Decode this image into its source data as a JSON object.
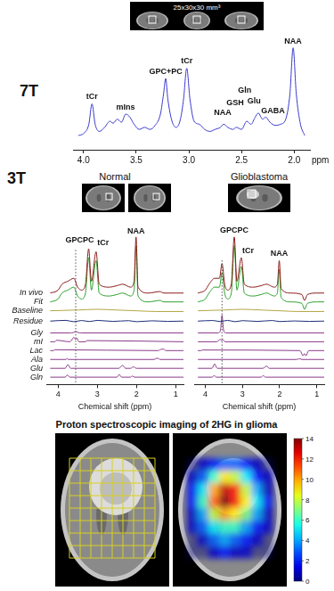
{
  "chart_data": [
    {
      "type": "line",
      "x_label": "ppm",
      "xlim": [
        4.1,
        1.85
      ],
      "xticks": [
        {
          "value": 4,
          "label": "4.0"
        },
        {
          "value": 3.5,
          "label": "3.5"
        },
        {
          "value": 3,
          "label": "3.0"
        },
        {
          "value": 2.5,
          "label": "2.5"
        },
        {
          "value": 2,
          "label": "2.0"
        }
      ],
      "ylim": [
        0,
        112
      ],
      "grid": false,
      "tick_labels": "x",
      "series": [
        {
          "color": "#3a3acc",
          "x": [
            4.05,
            4.0,
            3.95,
            3.92,
            3.89,
            3.85,
            3.8,
            3.75,
            3.72,
            3.68,
            3.64,
            3.6,
            3.56,
            3.52,
            3.47,
            3.42,
            3.37,
            3.32,
            3.27,
            3.24,
            3.22,
            3.2,
            3.16,
            3.12,
            3.08,
            3.05,
            3.02,
            2.99,
            2.95,
            2.9,
            2.85,
            2.8,
            2.75,
            2.7,
            2.67,
            2.63,
            2.58,
            2.55,
            2.5,
            2.45,
            2.41,
            2.37,
            2.34,
            2.3,
            2.27,
            2.23,
            2.18,
            2.13,
            2.08,
            2.04,
            2.01,
            1.98,
            1.94,
            1.9
          ],
          "values": [
            14,
            16,
            25,
            45,
            25,
            18,
            22,
            28,
            26,
            30,
            27,
            35,
            32,
            25,
            20,
            22,
            20,
            24,
            35,
            55,
            70,
            50,
            28,
            22,
            30,
            50,
            80,
            50,
            28,
            25,
            20,
            18,
            20,
            22,
            25,
            22,
            20,
            22,
            20,
            28,
            25,
            32,
            36,
            30,
            32,
            27,
            24,
            25,
            30,
            55,
            100,
            55,
            25,
            14
          ]
        }
      ],
      "annotations": [
        {
          "text": "tCr",
          "x": 3.92,
          "y": 48
        },
        {
          "text": "mIns",
          "x": 3.6,
          "y": 38
        },
        {
          "text": "GPC+PC",
          "x": 3.22,
          "y": 73
        },
        {
          "text": "tCr",
          "x": 3.02,
          "y": 83
        },
        {
          "text": "NAA",
          "x": 2.68,
          "y": 32
        },
        {
          "text": "GSH",
          "x": 2.56,
          "y": 42
        },
        {
          "text": "Gln",
          "x": 2.47,
          "y": 54
        },
        {
          "text": "Glu",
          "x": 2.38,
          "y": 44
        },
        {
          "text": "GABA",
          "x": 2.2,
          "y": 34
        },
        {
          "text": "NAA",
          "x": 2.01,
          "y": 102
        }
      ]
    },
    {
      "type": "line",
      "title": "Normal",
      "x_label": "Chemical shift (ppm)",
      "xlim": [
        4.3,
        0.8
      ],
      "xticks": [
        4,
        3,
        2,
        1
      ],
      "ylim": [
        0,
        112
      ],
      "grid": false,
      "tick_labels": "x",
      "reference_x": 3.55,
      "series": [
        {
          "name": "In vivo",
          "color": "#8b1a1a",
          "x": [
            4.2,
            4.0,
            3.9,
            3.75,
            3.6,
            3.5,
            3.4,
            3.3,
            3.22,
            3.15,
            3.03,
            2.95,
            2.7,
            2.5,
            2.35,
            2.15,
            2.06,
            2.01,
            1.96,
            1.7,
            1.4,
            1.3,
            1.0,
            0.8
          ],
          "values": [
            62,
            64,
            68,
            70,
            72,
            66,
            64,
            68,
            92,
            70,
            90,
            68,
            66,
            67,
            68,
            66,
            70,
            100,
            66,
            62,
            63,
            62,
            62,
            62
          ]
        },
        {
          "name": "Fit",
          "color": "#2ca02c",
          "x": [
            4.2,
            4.0,
            3.9,
            3.75,
            3.6,
            3.5,
            3.4,
            3.3,
            3.22,
            3.15,
            3.03,
            2.95,
            2.7,
            2.5,
            2.35,
            2.15,
            2.06,
            2.01,
            1.96,
            1.7,
            1.4,
            1.3,
            1.0,
            0.8
          ],
          "values": [
            56,
            58,
            62,
            64,
            66,
            60,
            58,
            62,
            86,
            64,
            84,
            62,
            60,
            61,
            62,
            60,
            64,
            94,
            60,
            56,
            57,
            56,
            56,
            56
          ]
        },
        {
          "name": "Baseline",
          "color": "#b5a642",
          "x": [
            4.2,
            3.5,
            3.0,
            2.5,
            2.0,
            1.5,
            0.8
          ],
          "values": [
            50,
            50.5,
            51,
            50.5,
            50,
            49.5,
            49.5
          ]
        },
        {
          "name": "Residue",
          "color": "#1f2f7a",
          "x": [
            4.2,
            3.8,
            3.6,
            3.4,
            3.2,
            3.0,
            2.6,
            2.2,
            2.0,
            1.6,
            1.2,
            0.8
          ],
          "values": [
            43,
            43.5,
            42.6,
            43.4,
            42.7,
            43.5,
            42.8,
            43.3,
            42.6,
            43.2,
            42.8,
            43
          ]
        },
        {
          "name": "Gly",
          "color": "#8b3a8b",
          "x": [
            4.2,
            3.7,
            3.6,
            3.55,
            3.5,
            3.4,
            0.8
          ],
          "values": [
            35,
            35,
            35.3,
            36,
            35.3,
            35,
            35
          ]
        },
        {
          "name": "mI",
          "color": "#8b3a8b",
          "x": [
            4.2,
            4.08,
            4.04,
            3.7,
            3.63,
            3.6,
            3.55,
            3.52,
            3.47,
            3.3,
            3.26,
            0.8
          ],
          "values": [
            29,
            29,
            30,
            29,
            31,
            32,
            30.5,
            31.5,
            29,
            29,
            29.8,
            29
          ]
        },
        {
          "name": "Lac",
          "color": "#8b3a8b",
          "x": [
            4.2,
            4.12,
            4.08,
            1.45,
            1.35,
            1.31,
            1.25,
            0.8
          ],
          "values": [
            23,
            23,
            23.6,
            23,
            24,
            24,
            23,
            23
          ]
        },
        {
          "name": "Ala",
          "color": "#8b3a8b",
          "x": [
            4.2,
            3.8,
            3.77,
            3.74,
            1.55,
            1.48,
            1.45,
            1.4,
            0.8
          ],
          "values": [
            17,
            17,
            17.6,
            17,
            17,
            17.8,
            17.8,
            17,
            17
          ]
        },
        {
          "name": "Glu",
          "color": "#8b3a8b",
          "x": [
            4.2,
            3.82,
            3.75,
            3.68,
            2.45,
            2.35,
            2.28,
            2.15,
            2.08,
            2.0,
            0.8
          ],
          "values": [
            11,
            11,
            13.5,
            11,
            11,
            13,
            11,
            11,
            12,
            11,
            11
          ]
        },
        {
          "name": "Gln",
          "color": "#8b3a8b",
          "x": [
            4.2,
            3.82,
            3.76,
            3.7,
            2.5,
            2.44,
            2.38,
            2.15,
            2.11,
            2.05,
            0.8
          ],
          "values": [
            5,
            5,
            6.5,
            5,
            5,
            6.8,
            5,
            5,
            5.8,
            5,
            5
          ]
        }
      ],
      "annotations": [
        {
          "text": "GPCPC",
          "x": 3.45,
          "y": 95
        },
        {
          "text": "tCr",
          "x": 2.85,
          "y": 93
        },
        {
          "text": "NAA",
          "x": 2.01,
          "y": 101
        }
      ]
    },
    {
      "type": "line",
      "title": "Glioblastoma",
      "x_label": "Chemical shift (ppm)",
      "xlim": [
        4.3,
        0.8
      ],
      "xticks": [
        4,
        3,
        2,
        1
      ],
      "ylim": [
        0,
        112
      ],
      "grid": false,
      "tick_labels": "x",
      "reference_x": 3.55,
      "series": [
        {
          "name": "In vivo",
          "color": "#8b1a1a",
          "x": [
            4.2,
            4.0,
            3.9,
            3.75,
            3.62,
            3.55,
            3.48,
            3.4,
            3.3,
            3.22,
            3.15,
            3.03,
            2.95,
            2.7,
            2.5,
            2.35,
            2.15,
            2.06,
            2.01,
            1.96,
            1.7,
            1.4,
            1.33,
            1.25,
            1.0,
            0.8
          ],
          "values": [
            62,
            64,
            68,
            72,
            72,
            82,
            68,
            64,
            68,
            100,
            70,
            86,
            68,
            66,
            67,
            68,
            66,
            68,
            84,
            65,
            62,
            61,
            57,
            61,
            62,
            62
          ]
        },
        {
          "name": "Fit",
          "color": "#2ca02c",
          "x": [
            4.2,
            4.0,
            3.9,
            3.75,
            3.62,
            3.55,
            3.48,
            3.4,
            3.3,
            3.22,
            3.15,
            3.03,
            2.95,
            2.7,
            2.5,
            2.35,
            2.15,
            2.06,
            2.01,
            1.96,
            1.7,
            1.4,
            1.33,
            1.25,
            1.0,
            0.8
          ],
          "values": [
            56,
            58,
            62,
            66,
            66,
            76,
            62,
            58,
            62,
            94,
            64,
            80,
            62,
            60,
            61,
            62,
            60,
            62,
            78,
            59,
            56,
            55,
            51,
            55,
            56,
            56
          ]
        },
        {
          "name": "Baseline",
          "color": "#b5a642",
          "x": [
            4.2,
            3.5,
            3.0,
            2.5,
            2.0,
            1.5,
            0.8
          ],
          "values": [
            50,
            50.5,
            51,
            50.5,
            50,
            49.5,
            49.5
          ]
        },
        {
          "name": "Residue",
          "color": "#1f2f7a",
          "x": [
            4.2,
            3.8,
            3.6,
            3.4,
            3.2,
            3.0,
            2.6,
            2.2,
            2.0,
            1.6,
            1.2,
            0.8
          ],
          "values": [
            43,
            43.4,
            42.7,
            43.5,
            42.6,
            43.3,
            42.8,
            43.4,
            42.7,
            43.1,
            42.8,
            43
          ]
        },
        {
          "name": "Gly",
          "color": "#8b3a8b",
          "x": [
            4.2,
            3.65,
            3.59,
            3.55,
            3.51,
            3.45,
            0.8
          ],
          "values": [
            35,
            35,
            37,
            47,
            37,
            35,
            35
          ]
        },
        {
          "name": "mI",
          "color": "#8b3a8b",
          "x": [
            4.2,
            3.7,
            3.63,
            3.6,
            3.56,
            3.52,
            3.47,
            0.8
          ],
          "values": [
            29,
            29,
            30,
            30.6,
            29.8,
            30.3,
            29,
            29
          ]
        },
        {
          "name": "Lac",
          "color": "#8b3a8b",
          "x": [
            4.2,
            4.12,
            4.08,
            1.45,
            1.37,
            1.33,
            1.29,
            1.22,
            0.8
          ],
          "values": [
            23,
            23,
            23.4,
            23,
            19.5,
            21,
            19.5,
            23,
            23
          ]
        },
        {
          "name": "Ala",
          "color": "#8b3a8b",
          "x": [
            4.2,
            1.55,
            1.48,
            1.45,
            1.4,
            0.8
          ],
          "values": [
            17,
            17,
            17.4,
            17.4,
            17,
            17
          ]
        },
        {
          "name": "Glu",
          "color": "#8b3a8b",
          "x": [
            4.2,
            3.82,
            3.75,
            3.68,
            2.45,
            2.35,
            2.28,
            0.8
          ],
          "values": [
            11,
            11,
            14,
            11,
            11,
            12.5,
            11,
            11
          ]
        },
        {
          "name": "Gln",
          "color": "#8b3a8b",
          "x": [
            4.2,
            3.82,
            3.76,
            3.7,
            2.5,
            2.44,
            2.38,
            0.8
          ],
          "values": [
            5,
            5,
            6,
            5,
            5,
            6,
            5,
            5
          ]
        }
      ],
      "annotations": [
        {
          "text": "GPCPC",
          "x": 3.22,
          "y": 102
        },
        {
          "text": "tCr",
          "x": 2.85,
          "y": 88
        },
        {
          "text": "NAA",
          "x": 2.01,
          "y": 86
        }
      ]
    }
  ],
  "section_labels": [
    "7T",
    "3T"
  ],
  "voxel_label": "25x30x30 mm³",
  "imaging": {
    "title": "Proton spectroscopic imaging of 2HG in glioma",
    "heatmap": [
      [
        0,
        1,
        2,
        3,
        3,
        2,
        1,
        0
      ],
      [
        1,
        3,
        6,
        9,
        8,
        5,
        2,
        1
      ],
      [
        2,
        5,
        10,
        13,
        12,
        8,
        4,
        1
      ],
      [
        2,
        6,
        11,
        14,
        12,
        9,
        5,
        2
      ],
      [
        1,
        4,
        8,
        10,
        9,
        7,
        4,
        1
      ],
      [
        1,
        3,
        5,
        6,
        6,
        4,
        2,
        1
      ],
      [
        0,
        1,
        3,
        4,
        3,
        2,
        1,
        0
      ],
      [
        0,
        0,
        1,
        2,
        1,
        1,
        0,
        0
      ]
    ],
    "colorbar": {
      "range": [
        0,
        14
      ],
      "ticks": [
        0,
        2,
        4,
        6,
        8,
        10,
        12,
        14
      ]
    }
  }
}
